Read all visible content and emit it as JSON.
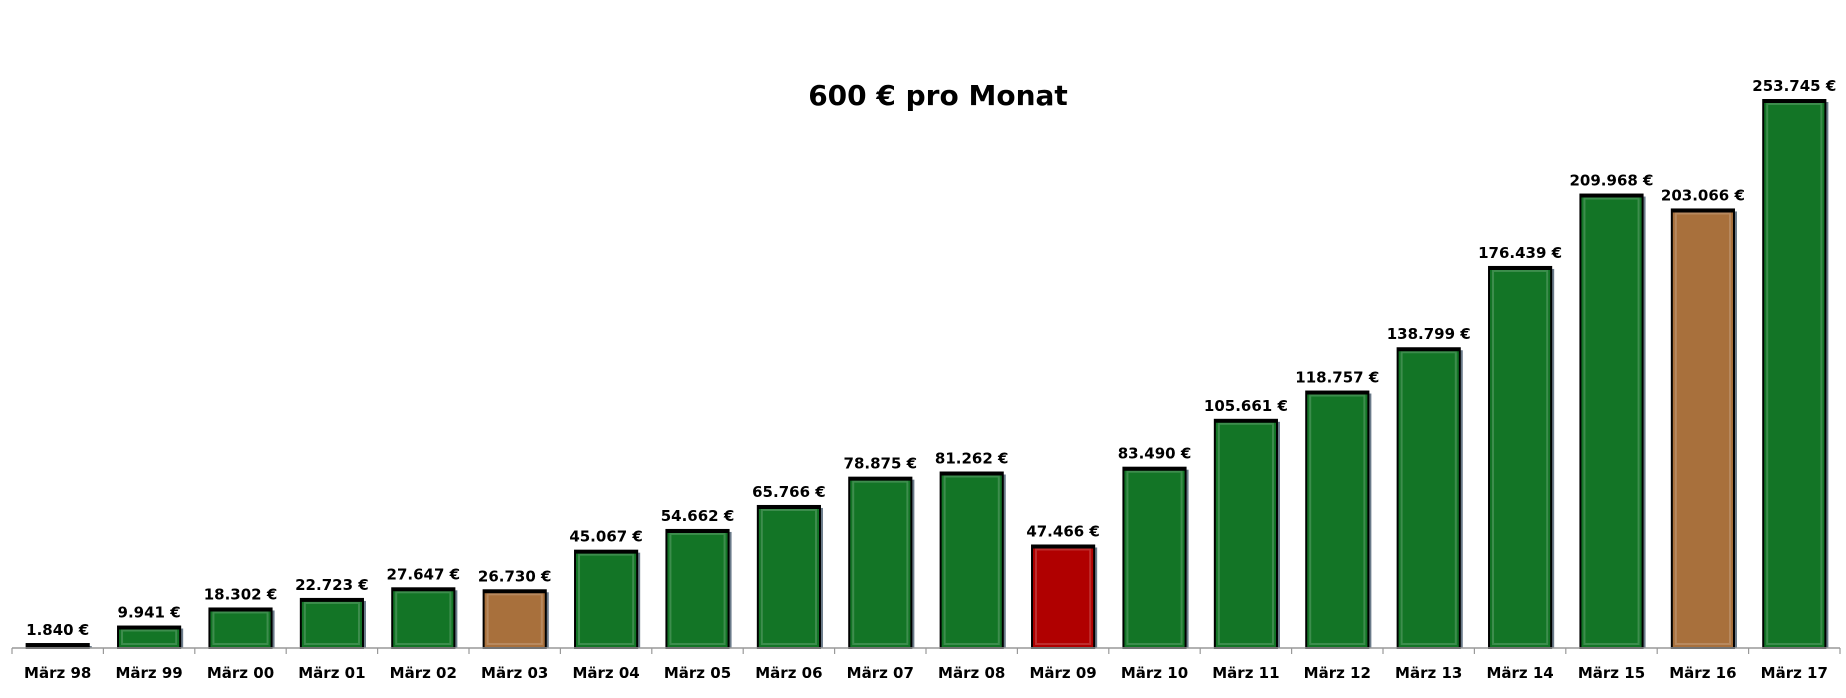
{
  "chart_data": {
    "type": "bar",
    "title": "600 € pro Monat",
    "xlabel": "",
    "ylabel": "",
    "ylim": [
      0,
      253745
    ],
    "grid": false,
    "legend": "none",
    "categories": [
      "März 98",
      "März 99",
      "März 00",
      "März 01",
      "März 02",
      "März 03",
      "März 04",
      "März 05",
      "März 06",
      "März 07",
      "März 08",
      "März 09",
      "März 10",
      "März 11",
      "März 12",
      "März 13",
      "März 14",
      "März 15",
      "März 16",
      "März 17"
    ],
    "values": [
      1840,
      9941,
      18302,
      22723,
      27647,
      26730,
      45067,
      54662,
      65766,
      78875,
      81262,
      47466,
      83490,
      105661,
      118757,
      138799,
      176439,
      209968,
      203066,
      253745
    ],
    "value_labels": [
      "1.840 €",
      "9.941 €",
      "18.302 €",
      "22.723 €",
      "27.647 €",
      "26.730 €",
      "45.067 €",
      "54.662 €",
      "65.766 €",
      "78.875 €",
      "81.262 €",
      "47.466 €",
      "83.490 €",
      "105.661 €",
      "118.757 €",
      "138.799 €",
      "176.439 €",
      "209.968 €",
      "203.066 €",
      "253.745 €"
    ],
    "bar_colors": [
      "#137526",
      "#137526",
      "#137526",
      "#137526",
      "#137526",
      "#a8703c",
      "#137526",
      "#137526",
      "#137526",
      "#137526",
      "#137526",
      "#b00000",
      "#137526",
      "#137526",
      "#137526",
      "#137526",
      "#137526",
      "#137526",
      "#a8703c",
      "#137526"
    ]
  }
}
